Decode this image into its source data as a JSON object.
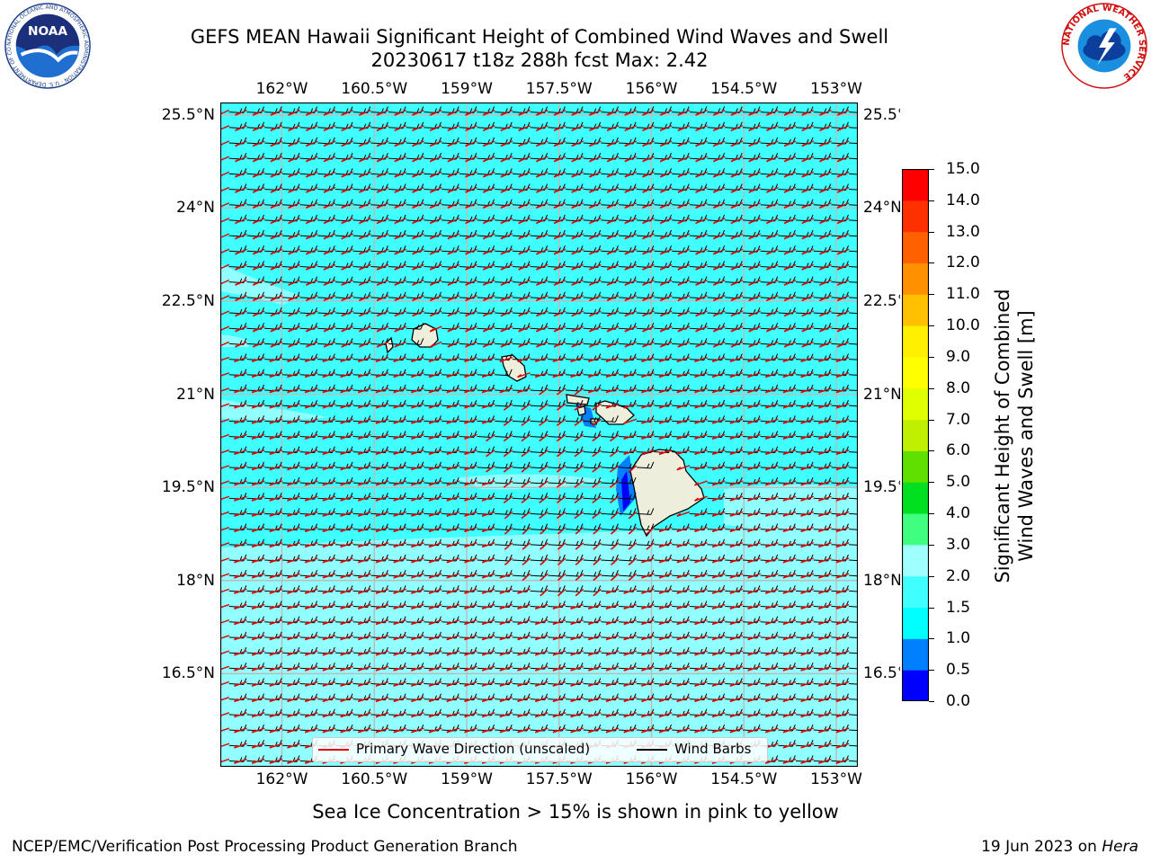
{
  "title_line1": "GEFS MEAN Hawaii Significant Height of Combined Wind Waves and Swell",
  "title_line2": "20230617 t18z 288h fcst   Max: 2.42",
  "lon_labels": [
    "162°W",
    "160.5°W",
    "159°W",
    "157.5°W",
    "156°W",
    "154.5°W",
    "153°W"
  ],
  "lon_values": [
    -162,
    -160.5,
    -159,
    -157.5,
    -156,
    -154.5,
    -153
  ],
  "lat_labels": [
    "25.5°N",
    "24°N",
    "22.5°N",
    "21°N",
    "19.5°N",
    "18°N",
    "16.5°N"
  ],
  "lat_values": [
    25.5,
    24,
    22.5,
    21,
    19.5,
    18,
    16.5
  ],
  "map_extent": {
    "lon_min": -163.0,
    "lon_max": -152.65,
    "lat_min": 15.0,
    "lat_max": 25.7
  },
  "colorbar": {
    "title": "Significant Height of Combined Wind Waves and Swell [m]",
    "title_line1": "Significant Height of Combined",
    "title_line2": "Wind Waves and Swell [m]",
    "tick_labels": [
      "15.0",
      "14.0",
      "13.0",
      "12.0",
      "11.0",
      "10.0",
      "9.0",
      "8.0",
      "7.0",
      "6.0",
      "5.0",
      "4.0",
      "3.0",
      "2.0",
      "1.5",
      "1.0",
      "0.5",
      "0.0"
    ],
    "bins": [
      {
        "from": 0.0,
        "to": 0.5,
        "color": "#0000ff"
      },
      {
        "from": 0.5,
        "to": 1.0,
        "color": "#0080ff"
      },
      {
        "from": 1.0,
        "to": 1.5,
        "color": "#00ffff"
      },
      {
        "from": 1.5,
        "to": 2.0,
        "color": "#40ffff"
      },
      {
        "from": 2.0,
        "to": 3.0,
        "color": "#a0ffff"
      },
      {
        "from": 3.0,
        "to": 4.0,
        "color": "#40ff80"
      },
      {
        "from": 4.0,
        "to": 5.0,
        "color": "#00e020"
      },
      {
        "from": 5.0,
        "to": 6.0,
        "color": "#60e000"
      },
      {
        "from": 6.0,
        "to": 7.0,
        "color": "#c0f000"
      },
      {
        "from": 7.0,
        "to": 8.0,
        "color": "#e0ff00"
      },
      {
        "from": 8.0,
        "to": 9.0,
        "color": "#ffff00"
      },
      {
        "from": 9.0,
        "to": 10.0,
        "color": "#fff000"
      },
      {
        "from": 10.0,
        "to": 11.0,
        "color": "#ffc000"
      },
      {
        "from": 11.0,
        "to": 12.0,
        "color": "#ff9000"
      },
      {
        "from": 12.0,
        "to": 13.0,
        "color": "#ff6000"
      },
      {
        "from": 13.0,
        "to": 14.0,
        "color": "#ff3000"
      },
      {
        "from": 14.0,
        "to": 15.0,
        "color": "#ff0000"
      }
    ]
  },
  "legend": {
    "wave_direction": "Primary Wave Direction (unscaled)",
    "wind_barbs": "Wind Barbs",
    "wave_color": "#e00000",
    "barb_color": "#000000"
  },
  "sea_ice_note": "Sea Ice Concentration > 15% is shown in pink to yellow",
  "footer_left": "NCEP/EMC/Verification Post Processing Product Generation Branch",
  "footer_right_prefix": "19 Jun 2023 on ",
  "footer_right_machine": "Hera",
  "logo_left": "NOAA",
  "logo_left_ring": "NATIONAL OCEANIC AND ATMOSPHERIC ADMINISTRATION · U.S. DEPARTMENT OF COMMERCE",
  "logo_right_ring": "NATIONAL WEATHER SERVICE",
  "colors": {
    "ocean": "#40ffff",
    "land": "#eeeedd",
    "grid": "#bbbbbb",
    "wave_arrow": "#e00000"
  }
}
